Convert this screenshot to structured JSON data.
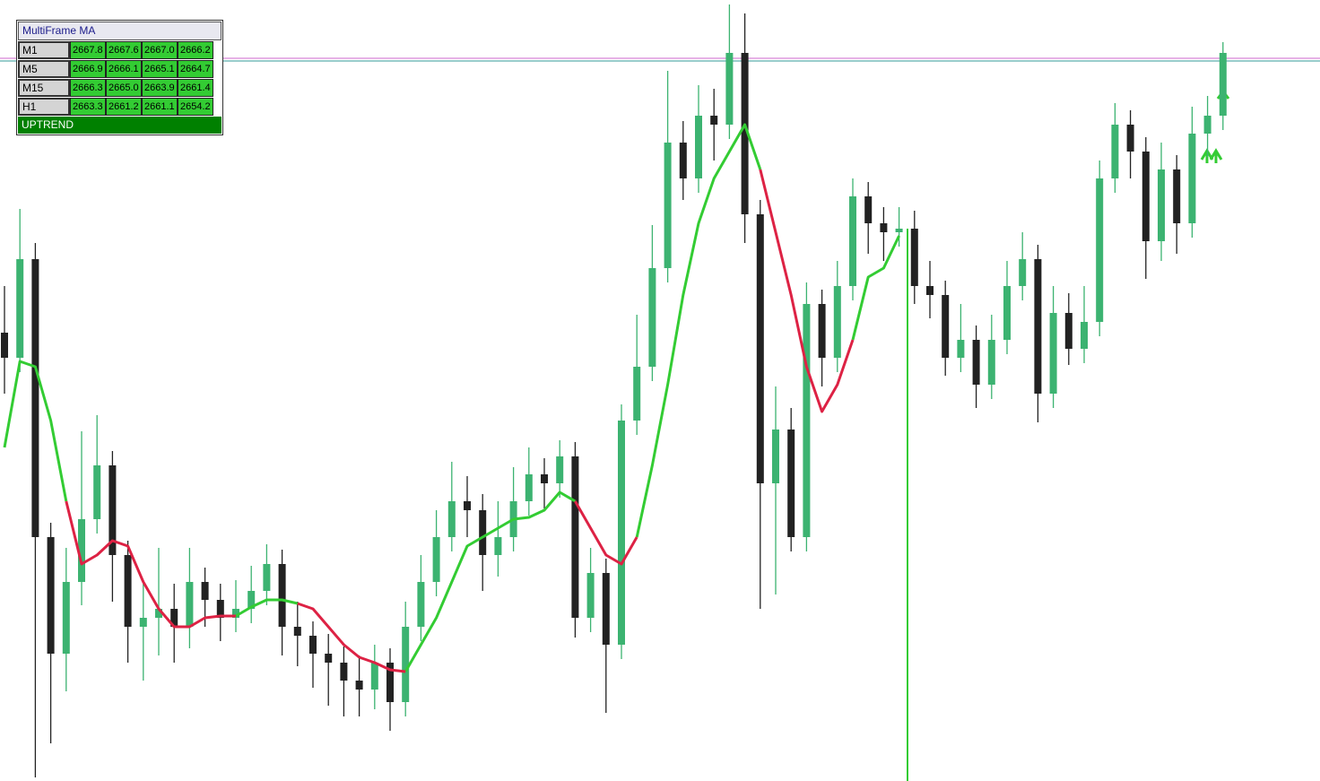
{
  "panel": {
    "title": "MultiFrame MA",
    "rows": [
      {
        "label": "M1",
        "values": [
          "2667.8",
          "2667.6",
          "2667.0",
          "2666.2"
        ]
      },
      {
        "label": "M5",
        "values": [
          "2666.9",
          "2666.1",
          "2665.1",
          "2664.7"
        ]
      },
      {
        "label": "M15",
        "values": [
          "2666.3",
          "2665.0",
          "2663.9",
          "2661.4"
        ]
      },
      {
        "label": "H1",
        "values": [
          "2663.3",
          "2661.2",
          "2661.1",
          "2654.2"
        ]
      }
    ],
    "status": "UPTREND"
  },
  "chart_data": {
    "type": "candlestick",
    "ylim": [
      2630,
      2673.55
    ],
    "up_color": "#3cb371",
    "down_color": "#222222",
    "open": [
      2655.0,
      2653.6,
      2659.1,
      2643.6,
      2637.1,
      2641.1,
      2644.6,
      2647.6,
      2642.6,
      2638.6,
      2639.1,
      2639.6,
      2638.6,
      2641.1,
      2640.1,
      2639.1,
      2639.6,
      2640.6,
      2642.1,
      2638.6,
      2638.1,
      2637.1,
      2636.6,
      2635.6,
      2635.1,
      2636.6,
      2634.4,
      2638.6,
      2641.1,
      2643.6,
      2645.6,
      2645.1,
      2642.6,
      2643.6,
      2645.6,
      2647.1,
      2646.6,
      2648.1,
      2639.1,
      2641.6,
      2637.6,
      2650.1,
      2653.1,
      2658.6,
      2665.6,
      2663.6,
      2667.1,
      2666.6,
      2670.6,
      2661.6,
      2646.6,
      2649.6,
      2643.6,
      2656.6,
      2653.6,
      2657.6,
      2662.6,
      2661.1,
      2660.6,
      2660.8,
      2657.6,
      2657.1,
      2653.6,
      2654.6,
      2652.1,
      2654.6,
      2657.6,
      2659.1,
      2651.6,
      2656.1,
      2654.1,
      2655.6,
      2663.6,
      2666.6,
      2665.1,
      2660.1,
      2664.1,
      2661.1,
      2666.1,
      2667.1
    ],
    "high": [
      2657.6,
      2661.9,
      2660.0,
      2644.4,
      2643.0,
      2649.5,
      2650.4,
      2648.4,
      2643.4,
      2641.0,
      2643.0,
      2641.0,
      2643.0,
      2641.9,
      2641.0,
      2641.2,
      2642.0,
      2643.2,
      2642.9,
      2640.0,
      2638.9,
      2638.2,
      2637.5,
      2637.0,
      2637.6,
      2637.4,
      2640.0,
      2642.6,
      2645.1,
      2647.8,
      2647.0,
      2646.0,
      2645.6,
      2647.5,
      2648.6,
      2648.0,
      2649.0,
      2648.9,
      2643.0,
      2642.4,
      2651.0,
      2656.0,
      2661.0,
      2669.6,
      2666.8,
      2668.8,
      2668.6,
      2673.3,
      2672.8,
      2662.4,
      2652.0,
      2650.8,
      2657.8,
      2657.4,
      2659.0,
      2663.6,
      2663.4,
      2662.0,
      2662.0,
      2661.8,
      2659.0,
      2657.9,
      2656.6,
      2655.4,
      2656.0,
      2659.0,
      2660.6,
      2659.9,
      2657.6,
      2657.2,
      2657.6,
      2664.6,
      2667.8,
      2667.4,
      2665.9,
      2665.6,
      2664.9,
      2667.6,
      2668.2,
      2671.2
    ],
    "low": [
      2651.6,
      2652.8,
      2630.2,
      2632.1,
      2635.0,
      2639.8,
      2643.8,
      2640.0,
      2636.6,
      2635.6,
      2637.0,
      2636.6,
      2637.4,
      2638.6,
      2637.8,
      2638.3,
      2638.8,
      2639.8,
      2637.0,
      2636.4,
      2635.2,
      2634.2,
      2633.6,
      2633.6,
      2634.0,
      2632.8,
      2633.6,
      2637.8,
      2640.3,
      2642.8,
      2643.6,
      2640.6,
      2641.4,
      2642.8,
      2644.8,
      2645.2,
      2645.8,
      2638.0,
      2638.3,
      2633.8,
      2636.8,
      2649.3,
      2652.3,
      2657.8,
      2662.4,
      2662.8,
      2664.6,
      2665.8,
      2660.0,
      2639.6,
      2640.4,
      2642.8,
      2642.8,
      2652.0,
      2652.8,
      2656.8,
      2659.4,
      2659.0,
      2659.8,
      2656.6,
      2655.8,
      2652.6,
      2652.8,
      2650.8,
      2651.3,
      2653.8,
      2656.8,
      2650.0,
      2650.8,
      2653.2,
      2653.3,
      2654.8,
      2662.8,
      2663.6,
      2658.0,
      2659.0,
      2659.4,
      2660.3,
      2664.8,
      2666.3
    ],
    "close": [
      2653.6,
      2659.1,
      2643.6,
      2637.1,
      2641.1,
      2644.6,
      2647.6,
      2642.6,
      2638.6,
      2639.1,
      2639.6,
      2638.6,
      2641.1,
      2640.1,
      2639.1,
      2639.6,
      2640.6,
      2642.1,
      2638.6,
      2638.1,
      2637.1,
      2636.6,
      2635.6,
      2635.1,
      2636.6,
      2634.4,
      2638.6,
      2641.1,
      2643.6,
      2645.6,
      2645.1,
      2642.6,
      2643.6,
      2645.6,
      2647.1,
      2646.6,
      2648.1,
      2639.1,
      2641.6,
      2637.6,
      2650.1,
      2653.1,
      2658.6,
      2665.6,
      2663.6,
      2667.1,
      2666.6,
      2670.6,
      2661.6,
      2646.6,
      2649.6,
      2643.6,
      2656.6,
      2653.6,
      2657.6,
      2662.6,
      2661.1,
      2660.6,
      2660.8,
      2657.6,
      2657.1,
      2653.6,
      2654.6,
      2652.1,
      2654.6,
      2657.6,
      2659.1,
      2651.6,
      2656.1,
      2654.1,
      2655.6,
      2663.6,
      2666.6,
      2665.1,
      2660.1,
      2664.1,
      2661.1,
      2666.1,
      2667.1,
      2670.6
    ],
    "ma_up": {
      "color": "#33cc33",
      "values": [
        2648.6,
        2653.4,
        2653.1,
        2650.1,
        2645.6,
        null,
        null,
        null,
        null,
        null,
        null,
        null,
        null,
        null,
        null,
        2639.2,
        2639.7,
        2640.1,
        2640.1,
        2639.9,
        null,
        null,
        null,
        null,
        null,
        null,
        2636.1,
        2637.6,
        2639.1,
        2641.1,
        2643.1,
        2643.6,
        2644.1,
        2644.6,
        2644.7,
        2645.1,
        2646.1,
        2645.6,
        null,
        null,
        null,
        2643.6,
        2647.6,
        2652.1,
        2657.1,
        2661.1,
        2663.6,
        2665.1,
        2666.6,
        2664.1,
        null,
        null,
        null,
        null,
        null,
        2654.6,
        2658.1,
        2658.6,
        2660.4,
        null,
        null,
        null,
        null,
        null,
        null,
        null,
        null,
        null,
        null,
        null,
        null,
        null,
        null,
        null,
        null,
        null,
        null,
        null,
        null,
        null
      ]
    },
    "ma_down": {
      "color": "#dd2244",
      "values": [
        null,
        null,
        null,
        null,
        2645.6,
        2642.1,
        2642.6,
        2643.4,
        2643.1,
        2641.1,
        2639.6,
        2638.6,
        2638.6,
        2639.1,
        2639.2,
        2639.2,
        null,
        null,
        null,
        2639.9,
        2639.6,
        2638.6,
        2637.6,
        2636.9,
        2636.6,
        2636.2,
        2636.1,
        null,
        null,
        null,
        null,
        null,
        null,
        null,
        null,
        null,
        null,
        2645.6,
        2644.1,
        2642.6,
        2642.1,
        2643.6,
        null,
        null,
        null,
        null,
        null,
        null,
        null,
        2664.1,
        2660.6,
        2657.1,
        2653.1,
        2650.6,
        2652.1,
        2654.6,
        null,
        null,
        null,
        null,
        null,
        null,
        null,
        null,
        null,
        null,
        null,
        null,
        null,
        null,
        null,
        null,
        null,
        null,
        null,
        null,
        null,
        null,
        null,
        null
      ]
    },
    "hlines": [
      {
        "value": 2670.3,
        "color": "#cc66cc"
      },
      {
        "value": 2670.15,
        "color": "#339999"
      }
    ]
  }
}
